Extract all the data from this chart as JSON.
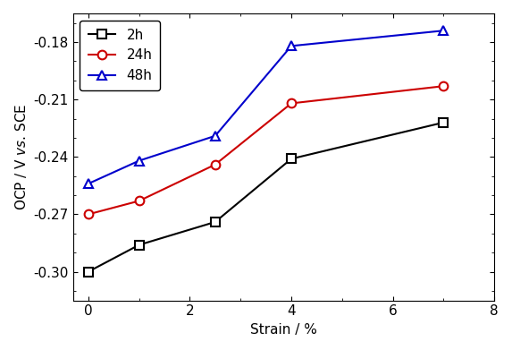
{
  "series": [
    {
      "label": "2h",
      "color": "#000000",
      "marker": "s",
      "x": [
        0,
        1,
        2.5,
        4,
        7
      ],
      "y": [
        -0.3,
        -0.286,
        -0.274,
        -0.241,
        -0.222
      ]
    },
    {
      "label": "24h",
      "color": "#cc0000",
      "marker": "o",
      "x": [
        0,
        1,
        2.5,
        4,
        7
      ],
      "y": [
        -0.27,
        -0.263,
        -0.244,
        -0.212,
        -0.203
      ]
    },
    {
      "label": "48h",
      "color": "#0000cc",
      "marker": "^",
      "x": [
        0,
        1,
        2.5,
        4,
        7
      ],
      "y": [
        -0.254,
        -0.242,
        -0.229,
        -0.182,
        -0.174
      ]
    }
  ],
  "xlabel": "Strain / %",
  "ylabel_plain": "OCP / V ",
  "ylabel_italic": "vs.",
  "ylabel_end": " SCE",
  "xlim": [
    -0.3,
    8.0
  ],
  "ylim": [
    -0.315,
    -0.165
  ],
  "xticks": [
    0,
    2,
    4,
    6,
    8
  ],
  "yticks": [
    -0.3,
    -0.27,
    -0.24,
    -0.21,
    -0.18
  ],
  "figsize": [
    5.73,
    3.91
  ],
  "dpi": 100,
  "legend_loc": "upper left",
  "marker_size": 7,
  "linewidth": 1.5
}
